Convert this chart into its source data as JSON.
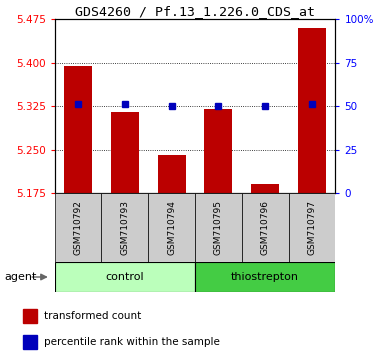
{
  "title": "GDS4260 / Pf.13_1.226.0_CDS_at",
  "samples": [
    "GSM710792",
    "GSM710793",
    "GSM710794",
    "GSM710795",
    "GSM710796",
    "GSM710797"
  ],
  "bar_values": [
    5.395,
    5.315,
    5.24,
    5.32,
    5.19,
    5.46
  ],
  "percentile_values": [
    5.328,
    5.328,
    5.325,
    5.326,
    5.326,
    5.328
  ],
  "baseline": 5.175,
  "ylim_left": [
    5.175,
    5.475
  ],
  "yticks_left": [
    5.175,
    5.25,
    5.325,
    5.4,
    5.475
  ],
  "ylim_right": [
    0,
    100
  ],
  "yticks_right": [
    0,
    25,
    50,
    75,
    100
  ],
  "ytick_right_labels": [
    "0",
    "25",
    "50",
    "75",
    "100%"
  ],
  "bar_color": "#BB0000",
  "dot_color": "#0000BB",
  "bar_width": 0.6,
  "groups": [
    {
      "label": "control",
      "indices": [
        0,
        1,
        2
      ],
      "color": "#BBFFBB"
    },
    {
      "label": "thiostrepton",
      "indices": [
        3,
        4,
        5
      ],
      "color": "#44CC44"
    }
  ],
  "agent_label": "agent",
  "legend_items": [
    {
      "label": "transformed count",
      "color": "#BB0000"
    },
    {
      "label": "percentile rank within the sample",
      "color": "#0000BB"
    }
  ],
  "plot_bg": "#FFFFFF",
  "outer_bg": "#FFFFFF",
  "tick_fontsize": 7.5,
  "title_fontsize": 9.5,
  "sample_fontsize": 6.5,
  "group_fontsize": 8,
  "legend_fontsize": 7.5
}
